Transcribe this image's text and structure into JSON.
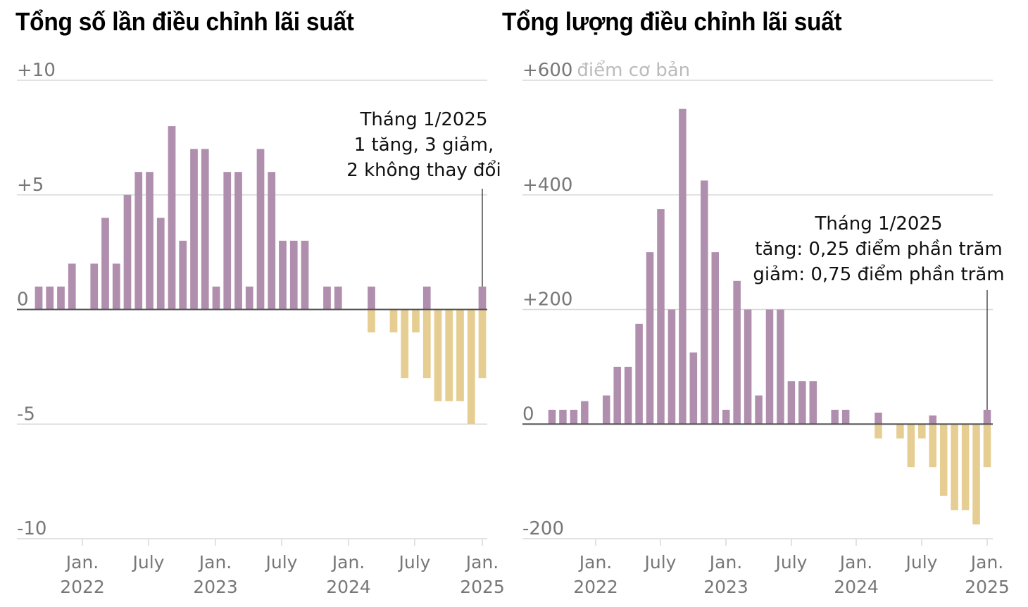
{
  "colors": {
    "increase": "#b08ead",
    "decrease": "#e6cd91",
    "grid": "#d8d8d8",
    "axis": "#555555",
    "tick_text": "#777777",
    "unit_text": "#bbbbbb"
  },
  "chart_data": [
    {
      "type": "bar",
      "title": "Tổng số lần điều chỉnh lãi suất",
      "ylabel": "",
      "ylim": [
        -10,
        10
      ],
      "yticks": [
        "+10",
        "+5",
        "0",
        "-5",
        "-10"
      ],
      "xticks": [
        {
          "label": "Jan.",
          "sub": "2022"
        },
        {
          "label": "July",
          "sub": ""
        },
        {
          "label": "Jan.",
          "sub": "2023"
        },
        {
          "label": "July",
          "sub": ""
        },
        {
          "label": "Jan.",
          "sub": "2024"
        },
        {
          "label": "July",
          "sub": ""
        },
        {
          "label": "Jan.",
          "sub": "2025"
        }
      ],
      "annotation": [
        "Tháng 1/2025",
        "1 tăng, 3 giảm,",
        "2 không thay đổi"
      ],
      "categories": [
        "2021-09",
        "2021-10",
        "2021-11",
        "2021-12",
        "2022-01",
        "2022-02",
        "2022-03",
        "2022-04",
        "2022-05",
        "2022-06",
        "2022-07",
        "2022-08",
        "2022-09",
        "2022-10",
        "2022-11",
        "2022-12",
        "2023-01",
        "2023-02",
        "2023-03",
        "2023-04",
        "2023-05",
        "2023-06",
        "2023-07",
        "2023-08",
        "2023-09",
        "2023-10",
        "2023-11",
        "2023-12",
        "2024-01",
        "2024-02",
        "2024-03",
        "2024-04",
        "2024-05",
        "2024-06",
        "2024-07",
        "2024-08",
        "2024-09",
        "2024-10",
        "2024-11",
        "2024-12",
        "2025-01"
      ],
      "series": [
        {
          "name": "Tăng",
          "values": [
            1,
            1,
            1,
            2,
            0,
            2,
            4,
            2,
            5,
            6,
            6,
            4,
            8,
            3,
            7,
            7,
            1,
            6,
            6,
            1,
            7,
            6,
            3,
            3,
            3,
            0,
            1,
            1,
            0,
            0,
            1,
            0,
            0,
            0,
            0,
            1,
            0,
            0,
            0,
            0,
            1
          ]
        },
        {
          "name": "Giảm",
          "values": [
            0,
            0,
            0,
            0,
            0,
            0,
            0,
            0,
            0,
            0,
            0,
            0,
            0,
            0,
            0,
            0,
            0,
            0,
            0,
            0,
            0,
            0,
            0,
            0,
            0,
            0,
            0,
            0,
            0,
            0,
            -1,
            0,
            -1,
            -3,
            -1,
            -3,
            -4,
            -4,
            -4,
            -5,
            -3
          ]
        }
      ]
    },
    {
      "type": "bar",
      "title": "Tổng lượng điều chỉnh lãi suất",
      "ylabel": "điểm cơ bản",
      "ylim": [
        -200,
        600
      ],
      "yticks": [
        "+600",
        "+400",
        "+200",
        "0",
        "-200"
      ],
      "unit_label": "điểm cơ bản",
      "xticks": [
        {
          "label": "Jan.",
          "sub": "2022"
        },
        {
          "label": "July",
          "sub": ""
        },
        {
          "label": "Jan.",
          "sub": "2023"
        },
        {
          "label": "July",
          "sub": ""
        },
        {
          "label": "Jan.",
          "sub": "2024"
        },
        {
          "label": "July",
          "sub": ""
        },
        {
          "label": "Jan.",
          "sub": "2025"
        }
      ],
      "annotation": [
        "Tháng 1/2025",
        "tăng: 0,25 điểm phần trăm",
        "giảm: 0,75 điểm phần trăm"
      ],
      "categories": [
        "2021-09",
        "2021-10",
        "2021-11",
        "2021-12",
        "2022-01",
        "2022-02",
        "2022-03",
        "2022-04",
        "2022-05",
        "2022-06",
        "2022-07",
        "2022-08",
        "2022-09",
        "2022-10",
        "2022-11",
        "2022-12",
        "2023-01",
        "2023-02",
        "2023-03",
        "2023-04",
        "2023-05",
        "2023-06",
        "2023-07",
        "2023-08",
        "2023-09",
        "2023-10",
        "2023-11",
        "2023-12",
        "2024-01",
        "2024-02",
        "2024-03",
        "2024-04",
        "2024-05",
        "2024-06",
        "2024-07",
        "2024-08",
        "2024-09",
        "2024-10",
        "2024-11",
        "2024-12",
        "2025-01"
      ],
      "series": [
        {
          "name": "Tăng",
          "values": [
            25,
            25,
            25,
            40,
            0,
            50,
            100,
            100,
            175,
            300,
            375,
            200,
            550,
            125,
            425,
            300,
            25,
            250,
            200,
            50,
            200,
            200,
            75,
            75,
            75,
            0,
            25,
            25,
            0,
            0,
            20,
            0,
            0,
            0,
            0,
            15,
            0,
            0,
            0,
            0,
            25
          ]
        },
        {
          "name": "Giảm",
          "values": [
            0,
            0,
            0,
            0,
            0,
            0,
            0,
            0,
            0,
            0,
            0,
            0,
            0,
            0,
            0,
            0,
            0,
            0,
            0,
            0,
            0,
            0,
            0,
            0,
            0,
            0,
            0,
            0,
            0,
            0,
            -25,
            0,
            -25,
            -75,
            -25,
            -75,
            -125,
            -150,
            -150,
            -175,
            -75
          ]
        }
      ]
    }
  ]
}
